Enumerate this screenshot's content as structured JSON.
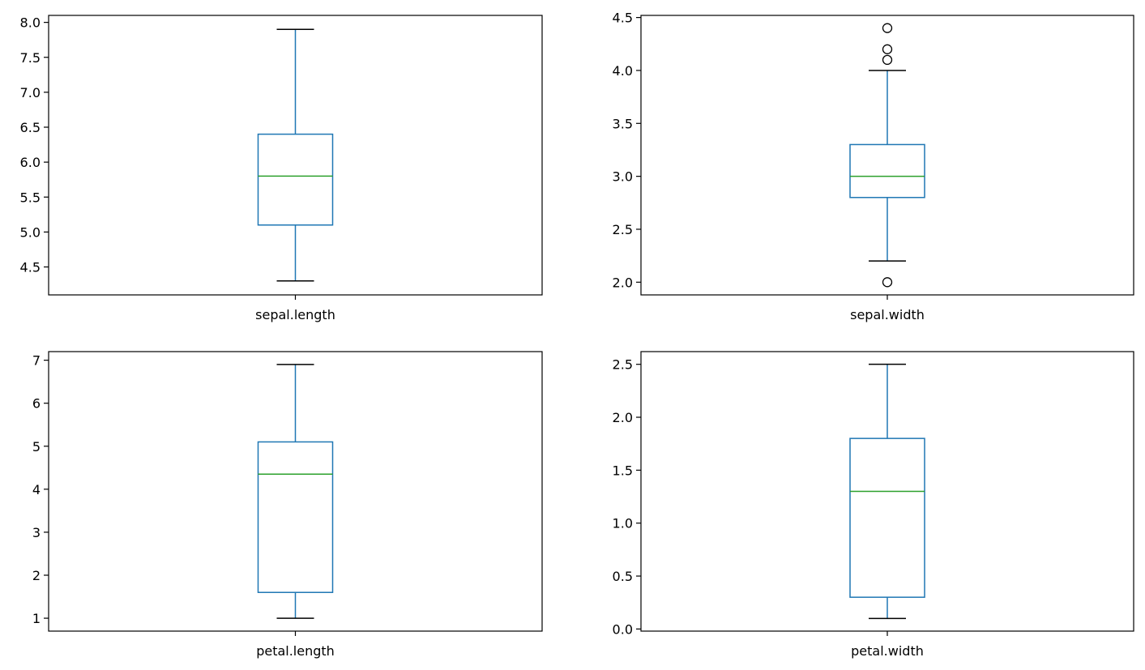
{
  "colors": {
    "box": "#1f77b4",
    "median": "#2ca02c",
    "whisker_cap": "#000000",
    "flier": "#000000",
    "axes": "#000000"
  },
  "chart_data": [
    {
      "type": "box",
      "position": "top-left",
      "xlabel": "sepal.length",
      "ylim": [
        4.1,
        8.1
      ],
      "yticks": [
        4.5,
        5.0,
        5.5,
        6.0,
        6.5,
        7.0,
        7.5,
        8.0
      ],
      "ytick_labels": [
        "4.5",
        "5.0",
        "5.5",
        "6.0",
        "6.5",
        "7.0",
        "7.5",
        "8.0"
      ],
      "whisker_low": 4.3,
      "q1": 5.1,
      "median": 5.8,
      "q3": 6.4,
      "whisker_high": 7.9,
      "outliers": []
    },
    {
      "type": "box",
      "position": "top-right",
      "xlabel": "sepal.width",
      "ylim": [
        1.88,
        4.52
      ],
      "yticks": [
        2.0,
        2.5,
        3.0,
        3.5,
        4.0,
        4.5
      ],
      "ytick_labels": [
        "2.0",
        "2.5",
        "3.0",
        "3.5",
        "4.0",
        "4.5"
      ],
      "whisker_low": 2.2,
      "q1": 2.8,
      "median": 3.0,
      "q3": 3.3,
      "whisker_high": 4.0,
      "outliers": [
        4.4,
        4.2,
        4.1,
        2.0
      ]
    },
    {
      "type": "box",
      "position": "bottom-left",
      "xlabel": "petal.length",
      "ylim": [
        0.7,
        7.2
      ],
      "yticks": [
        1,
        2,
        3,
        4,
        5,
        6,
        7
      ],
      "ytick_labels": [
        "1",
        "2",
        "3",
        "4",
        "5",
        "6",
        "7"
      ],
      "whisker_low": 1.0,
      "q1": 1.6,
      "median": 4.35,
      "q3": 5.1,
      "whisker_high": 6.9,
      "outliers": []
    },
    {
      "type": "box",
      "position": "bottom-right",
      "xlabel": "petal.width",
      "ylim": [
        -0.02,
        2.62
      ],
      "yticks": [
        0.0,
        0.5,
        1.0,
        1.5,
        2.0,
        2.5
      ],
      "ytick_labels": [
        "0.0",
        "0.5",
        "1.0",
        "1.5",
        "2.0",
        "2.5"
      ],
      "whisker_low": 0.1,
      "q1": 0.3,
      "median": 1.3,
      "q3": 1.8,
      "whisker_high": 2.5,
      "outliers": []
    }
  ]
}
